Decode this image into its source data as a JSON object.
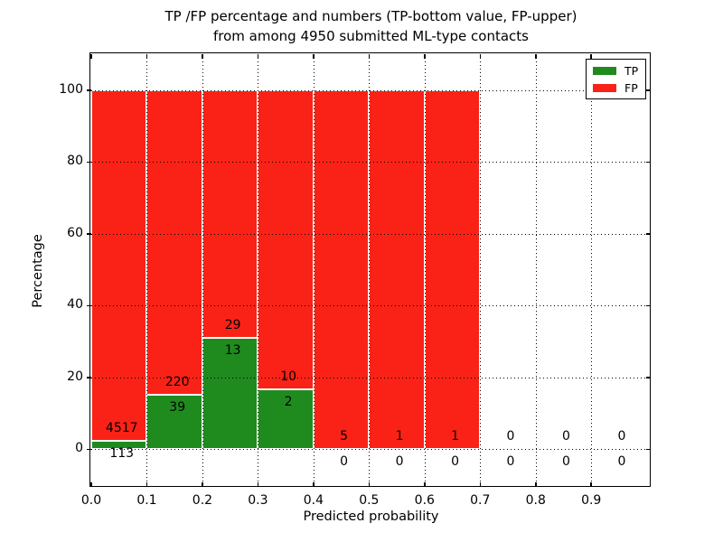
{
  "title": {
    "line1": "TP /FP percentage and numbers (TP-bottom value, FP-upper)",
    "line2": "from among 4950 submitted ML-type contacts"
  },
  "axes": {
    "xlabel": "Predicted probability",
    "ylabel": "Percentage",
    "x_tick_values": [
      0.0,
      0.1,
      0.2,
      0.3,
      0.4,
      0.5,
      0.6,
      0.7,
      0.8,
      0.9
    ],
    "x_tick_labels": [
      "0.0",
      "0.1",
      "0.2",
      "0.3",
      "0.4",
      "0.5",
      "0.6",
      "0.7",
      "0.8",
      "0.9"
    ],
    "y_tick_values": [
      0,
      20,
      40,
      60,
      80,
      100
    ],
    "y_tick_labels": [
      "0",
      "20",
      "40",
      "60",
      "80",
      "100"
    ],
    "grid": true
  },
  "legend": {
    "position": "upper-right",
    "items": [
      {
        "label": "TP",
        "color": "#1f8b1f"
      },
      {
        "label": "FP",
        "color": "#fa2217"
      }
    ]
  },
  "colors": {
    "tp": "#1f8b1f",
    "fp": "#fa2217",
    "background": "#ffffff",
    "text": "#000000",
    "bar_edge": "#ffffff"
  },
  "chart_data": {
    "type": "bar",
    "stacked": true,
    "unit": "percent of bin, annotated with raw counts",
    "total_contacts": 4950,
    "bin_edges": [
      0.0,
      0.1,
      0.2,
      0.3,
      0.4,
      0.5,
      0.6,
      0.7,
      0.8,
      0.9,
      1.0
    ],
    "categories": [
      "0.0-0.1",
      "0.1-0.2",
      "0.2-0.3",
      "0.3-0.4",
      "0.4-0.5",
      "0.5-0.6",
      "0.6-0.7",
      "0.7-0.8",
      "0.8-0.9",
      "0.9-1.0"
    ],
    "series": [
      {
        "name": "TP",
        "color": "#1f8b1f",
        "counts": [
          113,
          39,
          13,
          2,
          0,
          0,
          0,
          0,
          0,
          0
        ]
      },
      {
        "name": "FP",
        "color": "#fa2217",
        "counts": [
          4517,
          220,
          29,
          10,
          5,
          1,
          1,
          0,
          0,
          0
        ]
      }
    ],
    "tp_pct_of_bin": [
      2.44,
      15.06,
      30.95,
      16.67,
      0.0,
      0.0,
      0.0,
      null,
      null,
      null
    ],
    "fp_pct_of_bin": [
      97.56,
      84.94,
      69.05,
      83.33,
      100.0,
      100.0,
      100.0,
      null,
      null,
      null
    ],
    "xlabel": "Predicted probability",
    "ylabel": "Percentage",
    "xlim": [
      0,
      1.007
    ],
    "ylim": [
      -10.5,
      110
    ],
    "grid": true,
    "legend_position": "upper right"
  }
}
